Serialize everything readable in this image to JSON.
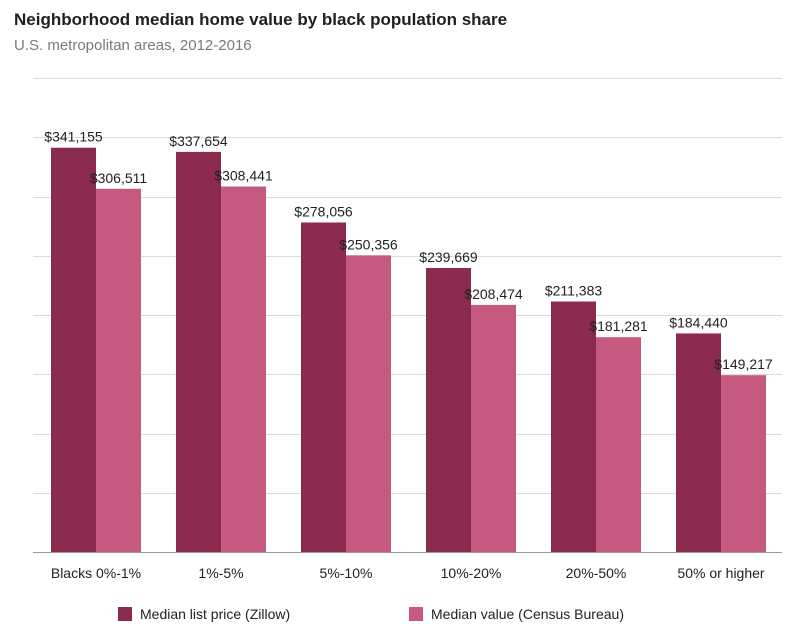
{
  "colors": {
    "zillow": "#8a2a4e",
    "census": "#c5597f"
  },
  "chart_data": {
    "type": "bar",
    "title": "Neighborhood median home value by black population share",
    "subtitle": "U.S. metropolitan areas, 2012-2016",
    "categories": [
      "Blacks 0%-1%",
      "1%-5%",
      "5%-10%",
      "10%-20%",
      "20%-50%",
      "50% or higher"
    ],
    "series": [
      {
        "name": "Median list price (Zillow)",
        "values": [
          341155,
          337654,
          278056,
          239669,
          211383,
          184440
        ],
        "labels": [
          "$341,155",
          "$337,654",
          "$278,056",
          "$239,669",
          "$211,383",
          "$184,440"
        ]
      },
      {
        "name": "Median value (Census Bureau)",
        "values": [
          306511,
          308441,
          250356,
          208474,
          181281,
          149217
        ],
        "labels": [
          "$306,511",
          "$308,441",
          "$250,356",
          "$208,474",
          "$181,281",
          "$149,217"
        ]
      }
    ],
    "ylim": [
      0,
      400000
    ],
    "gridlines": [
      0,
      50000,
      100000,
      150000,
      200000,
      250000,
      300000,
      350000,
      400000
    ],
    "xlabel": "",
    "ylabel": "",
    "legend_position": "bottom"
  }
}
